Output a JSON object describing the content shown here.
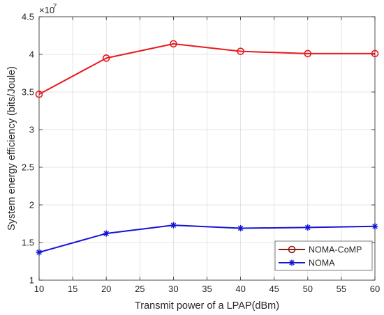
{
  "chart_data": {
    "type": "line",
    "title": "",
    "xlabel": "Transmit power of a LPAP(dBm)",
    "ylabel": "System energy efficiency (bits/Joule)",
    "y_exponent_label": "×10",
    "y_exponent_power": "7",
    "xlim": [
      10,
      60
    ],
    "ylim": [
      1,
      4.5
    ],
    "y_scale_factor": 10000000,
    "xticks": [
      10,
      15,
      20,
      25,
      30,
      35,
      40,
      45,
      50,
      55,
      60
    ],
    "xtick_labels": [
      "10",
      "15",
      "20",
      "25",
      "30",
      "35",
      "40",
      "45",
      "50",
      "55",
      "60"
    ],
    "yticks": [
      1,
      1.5,
      2,
      2.5,
      3,
      3.5,
      4,
      4.5
    ],
    "ytick_labels": [
      "1",
      "1.5",
      "2",
      "2.5",
      "3",
      "3.5",
      "4",
      "4.5"
    ],
    "grid": true,
    "legend_position": "bottom-right",
    "x": [
      10,
      20,
      30,
      40,
      50,
      60
    ],
    "series": [
      {
        "name": "NOMA-CoMP",
        "values": [
          3.47,
          3.95,
          4.14,
          4.04,
          4.01,
          4.01
        ],
        "color": "#e8191c",
        "marker": "circle"
      },
      {
        "name": "NOMA",
        "values": [
          1.37,
          1.62,
          1.73,
          1.69,
          1.7,
          1.715
        ],
        "color": "#1414d2",
        "marker": "star"
      }
    ]
  }
}
